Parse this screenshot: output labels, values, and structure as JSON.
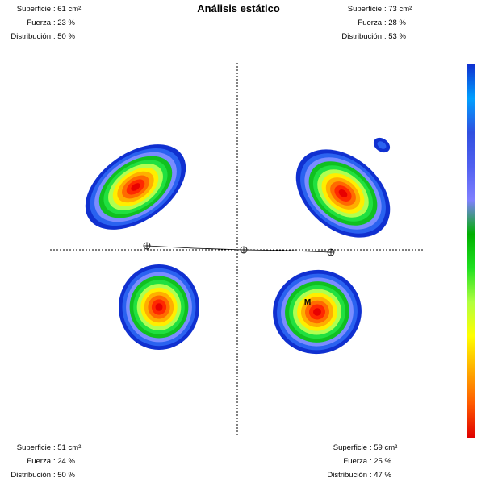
{
  "title": "Análisis estático",
  "marker_label": "M",
  "scale_colors": [
    "#e00000",
    "#ff5a00",
    "#ffae00",
    "#ffff00",
    "#b0ff40",
    "#20e020",
    "#00b000",
    "#8080ff",
    "#5060f0",
    "#3050e0",
    "#00a0ff",
    "#1030d0"
  ],
  "quadrants": {
    "top_left": {
      "superficie_label": "Superficie",
      "superficie": ": 61 cm²",
      "fuerza_label": "Fuerza",
      "fuerza": ": 23 %",
      "distribucion_label": "Distribución",
      "distribucion": ": 50 %"
    },
    "top_right": {
      "superficie_label": "Superficie",
      "superficie": ": 73 cm²",
      "fuerza_label": "Fuerza",
      "fuerza": ": 28 %",
      "distribucion_label": "Distribución",
      "distribucion": ": 53 %"
    },
    "bottom_left": {
      "superficie_label": "Superficie",
      "superficie": ": 51 cm²",
      "fuerza_label": "Fuerza",
      "fuerza": ": 24 %",
      "distribucion_label": "Distribución",
      "distribucion": ": 50 %"
    },
    "bottom_right": {
      "superficie_label": "Superficie",
      "superficie": ": 59 cm²",
      "fuerza_label": "Fuerza",
      "fuerza": ": 25 %",
      "distribucion_label": "Distribución",
      "distribucion": ": 47 %"
    }
  }
}
